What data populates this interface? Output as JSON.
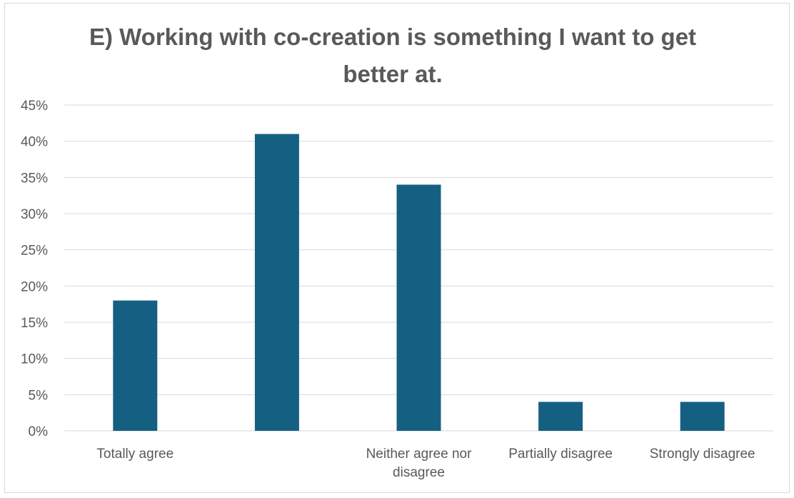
{
  "chart_data": {
    "type": "bar",
    "title": "E) Working with co-creation is something I want to get better at.",
    "categories": [
      "Totally agree",
      "",
      "Neither agree nor disagree",
      "Partially disagree",
      "Strongly disagree"
    ],
    "category_label_lines": [
      [
        "Totally agree"
      ],
      [],
      [
        "Neither agree nor",
        "disagree"
      ],
      [
        "Partially disagree"
      ],
      [
        "Strongly disagree"
      ]
    ],
    "values": [
      18,
      41,
      34,
      4,
      4
    ],
    "unit": "%",
    "ylim": [
      0,
      45
    ],
    "yticks": [
      0,
      5,
      10,
      15,
      20,
      25,
      30,
      35,
      40,
      45
    ],
    "ytick_labels": [
      "0%",
      "5%",
      "10%",
      "15%",
      "20%",
      "25%",
      "30%",
      "35%",
      "40%",
      "45%"
    ],
    "grid": true,
    "legend": "none",
    "xlabel": "",
    "ylabel": "",
    "bar_color": "#156082",
    "grid_color": "#d9d9d9",
    "text_color": "#595959"
  }
}
